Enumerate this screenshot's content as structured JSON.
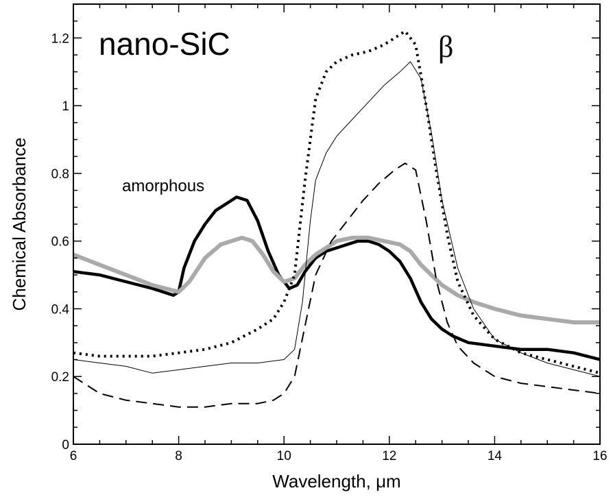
{
  "chart_data": {
    "type": "line",
    "title": "nano-SiC",
    "xlabel": "Wavelength, μm",
    "ylabel": "Chemical Absorbance",
    "xlim": [
      6,
      16
    ],
    "ylim": [
      0,
      1.3
    ],
    "x_ticks": [
      6,
      8,
      10,
      12,
      14,
      16
    ],
    "x_tick_labels": [
      "6",
      "8",
      "10",
      "12",
      "14",
      "16"
    ],
    "y_ticks": [
      0,
      0.2,
      0.4,
      0.6,
      0.8,
      1.0,
      1.2
    ],
    "y_tick_labels": [
      "0",
      "0.2",
      "0.4",
      "0.6",
      "0.8",
      "1",
      "1.2"
    ],
    "grid": false,
    "annotations": [
      {
        "text": "amorphous",
        "x": 7.8,
        "y": 0.76
      },
      {
        "text": "β",
        "x": 13.0,
        "y": 1.18
      }
    ],
    "series": [
      {
        "style": "thick-black-solid",
        "color": "#000000",
        "x": [
          6.0,
          6.5,
          7.0,
          7.5,
          7.9,
          8.0,
          8.1,
          8.3,
          8.5,
          8.7,
          8.9,
          9.1,
          9.3,
          9.5,
          9.7,
          9.9,
          10.1,
          10.25,
          10.4,
          10.6,
          10.8,
          11.0,
          11.2,
          11.4,
          11.6,
          11.8,
          12.0,
          12.2,
          12.4,
          12.6,
          12.8,
          13.0,
          13.2,
          13.5,
          14.0,
          14.5,
          15.0,
          15.5,
          16.0
        ],
        "y": [
          0.51,
          0.5,
          0.48,
          0.46,
          0.44,
          0.45,
          0.52,
          0.6,
          0.65,
          0.69,
          0.71,
          0.73,
          0.72,
          0.66,
          0.57,
          0.5,
          0.46,
          0.47,
          0.51,
          0.55,
          0.57,
          0.58,
          0.59,
          0.6,
          0.6,
          0.59,
          0.57,
          0.54,
          0.49,
          0.42,
          0.37,
          0.34,
          0.32,
          0.3,
          0.29,
          0.28,
          0.28,
          0.27,
          0.25
        ]
      },
      {
        "style": "thick-gray-solid",
        "color": "#aaaaaa",
        "x": [
          6.0,
          6.5,
          7.0,
          7.5,
          8.0,
          8.2,
          8.5,
          8.8,
          9.0,
          9.2,
          9.4,
          9.6,
          9.8,
          10.0,
          10.2,
          10.4,
          10.6,
          10.8,
          11.0,
          11.3,
          11.6,
          11.9,
          12.2,
          12.4,
          12.6,
          12.8,
          13.0,
          13.3,
          13.6,
          14.0,
          14.5,
          15.0,
          15.5,
          16.0
        ],
        "y": [
          0.56,
          0.53,
          0.5,
          0.47,
          0.45,
          0.48,
          0.55,
          0.59,
          0.6,
          0.61,
          0.6,
          0.56,
          0.51,
          0.48,
          0.49,
          0.53,
          0.56,
          0.58,
          0.6,
          0.61,
          0.61,
          0.6,
          0.59,
          0.57,
          0.53,
          0.5,
          0.47,
          0.44,
          0.42,
          0.4,
          0.38,
          0.37,
          0.36,
          0.36
        ]
      },
      {
        "style": "dotted",
        "color": "#000000",
        "x": [
          6.0,
          6.5,
          7.0,
          7.5,
          8.0,
          8.5,
          9.0,
          9.5,
          9.8,
          10.0,
          10.2,
          10.4,
          10.6,
          10.8,
          11.0,
          11.3,
          11.6,
          11.9,
          12.1,
          12.3,
          12.5,
          12.7,
          12.9,
          13.1,
          13.3,
          13.6,
          14.0,
          14.5,
          15.0,
          15.5,
          16.0
        ],
        "y": [
          0.27,
          0.26,
          0.26,
          0.26,
          0.27,
          0.28,
          0.3,
          0.34,
          0.37,
          0.42,
          0.5,
          0.78,
          1.02,
          1.1,
          1.13,
          1.15,
          1.16,
          1.18,
          1.2,
          1.22,
          1.18,
          1.0,
          0.8,
          0.62,
          0.48,
          0.38,
          0.31,
          0.27,
          0.25,
          0.23,
          0.21
        ]
      },
      {
        "style": "thin-black-solid",
        "color": "#000000",
        "x": [
          6.0,
          6.5,
          7.0,
          7.5,
          8.0,
          8.5,
          9.0,
          9.5,
          10.0,
          10.2,
          10.35,
          10.5,
          10.6,
          10.8,
          11.0,
          11.3,
          11.6,
          11.9,
          12.2,
          12.4,
          12.6,
          12.8,
          13.0,
          13.3,
          13.6,
          14.0,
          14.5,
          15.0,
          15.5,
          16.0
        ],
        "y": [
          0.25,
          0.24,
          0.23,
          0.21,
          0.22,
          0.23,
          0.24,
          0.24,
          0.25,
          0.28,
          0.42,
          0.66,
          0.78,
          0.86,
          0.91,
          0.96,
          1.01,
          1.06,
          1.1,
          1.13,
          1.08,
          0.92,
          0.72,
          0.52,
          0.4,
          0.31,
          0.27,
          0.24,
          0.22,
          0.2
        ]
      },
      {
        "style": "dashed",
        "color": "#000000",
        "x": [
          6.0,
          6.5,
          7.0,
          7.5,
          8.0,
          8.5,
          9.0,
          9.5,
          9.8,
          10.0,
          10.2,
          10.4,
          10.6,
          10.9,
          11.2,
          11.5,
          11.8,
          12.1,
          12.3,
          12.5,
          12.7,
          12.9,
          13.1,
          13.3,
          13.6,
          14.0,
          14.5,
          15.0,
          15.5,
          16.0
        ],
        "y": [
          0.2,
          0.15,
          0.13,
          0.12,
          0.11,
          0.11,
          0.12,
          0.12,
          0.13,
          0.15,
          0.2,
          0.35,
          0.5,
          0.6,
          0.66,
          0.72,
          0.77,
          0.81,
          0.83,
          0.81,
          0.66,
          0.48,
          0.36,
          0.29,
          0.24,
          0.2,
          0.18,
          0.17,
          0.16,
          0.15
        ]
      }
    ]
  }
}
